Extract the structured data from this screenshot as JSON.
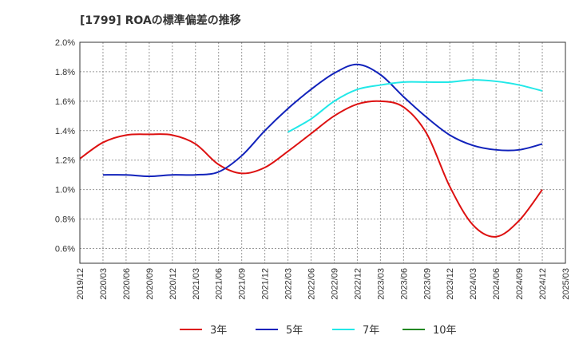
{
  "chart_data": {
    "type": "line",
    "title": "[1799]  ROAの標準偏差の推移",
    "xlabel": "",
    "ylabel": "",
    "ylim": [
      0.5,
      2.0
    ],
    "yticks": [
      "0.6%",
      "0.8%",
      "1.0%",
      "1.2%",
      "1.4%",
      "1.6%",
      "1.8%",
      "2.0%"
    ],
    "ytick_values": [
      0.6,
      0.8,
      1.0,
      1.2,
      1.4,
      1.6,
      1.8,
      2.0
    ],
    "xticks": [
      "2019/12",
      "2020/03",
      "2020/06",
      "2020/09",
      "2020/12",
      "2021/03",
      "2021/06",
      "2021/09",
      "2021/12",
      "2022/03",
      "2022/06",
      "2022/09",
      "2022/12",
      "2023/03",
      "2023/06",
      "2023/09",
      "2023/12",
      "2024/03",
      "2024/06",
      "2024/09",
      "2024/12",
      "2025/03"
    ],
    "grid": true,
    "legend_position": "bottom",
    "series": [
      {
        "name": "3年",
        "color": "#dd1111",
        "points": [
          [
            "2019/12",
            1.21
          ],
          [
            "2020/03",
            1.32
          ],
          [
            "2020/06",
            1.37
          ],
          [
            "2020/09",
            1.375
          ],
          [
            "2020/12",
            1.37
          ],
          [
            "2021/03",
            1.31
          ],
          [
            "2021/06",
            1.17
          ],
          [
            "2021/09",
            1.11
          ],
          [
            "2021/12",
            1.15
          ],
          [
            "2022/03",
            1.26
          ],
          [
            "2022/06",
            1.38
          ],
          [
            "2022/09",
            1.5
          ],
          [
            "2022/12",
            1.58
          ],
          [
            "2023/03",
            1.6
          ],
          [
            "2023/06",
            1.56
          ],
          [
            "2023/09",
            1.38
          ],
          [
            "2023/12",
            1.02
          ],
          [
            "2024/03",
            0.76
          ],
          [
            "2024/06",
            0.68
          ],
          [
            "2024/09",
            0.79
          ],
          [
            "2024/12",
            1.0
          ]
        ]
      },
      {
        "name": "5年",
        "color": "#1122bb",
        "points": [
          [
            "2020/03",
            1.1
          ],
          [
            "2020/06",
            1.1
          ],
          [
            "2020/09",
            1.09
          ],
          [
            "2020/12",
            1.1
          ],
          [
            "2021/03",
            1.1
          ],
          [
            "2021/06",
            1.12
          ],
          [
            "2021/09",
            1.23
          ],
          [
            "2021/12",
            1.4
          ],
          [
            "2022/03",
            1.55
          ],
          [
            "2022/06",
            1.68
          ],
          [
            "2022/09",
            1.79
          ],
          [
            "2022/12",
            1.85
          ],
          [
            "2023/03",
            1.78
          ],
          [
            "2023/06",
            1.63
          ],
          [
            "2023/09",
            1.49
          ],
          [
            "2023/12",
            1.37
          ],
          [
            "2024/03",
            1.3
          ],
          [
            "2024/06",
            1.27
          ],
          [
            "2024/09",
            1.27
          ],
          [
            "2024/12",
            1.31
          ]
        ]
      },
      {
        "name": "7年",
        "color": "#22e8e8",
        "points": [
          [
            "2022/03",
            1.39
          ],
          [
            "2022/06",
            1.48
          ],
          [
            "2022/09",
            1.6
          ],
          [
            "2022/12",
            1.68
          ],
          [
            "2023/03",
            1.71
          ],
          [
            "2023/06",
            1.73
          ],
          [
            "2023/09",
            1.73
          ],
          [
            "2023/12",
            1.73
          ],
          [
            "2024/03",
            1.745
          ],
          [
            "2024/06",
            1.735
          ],
          [
            "2024/09",
            1.71
          ],
          [
            "2024/12",
            1.67
          ]
        ]
      },
      {
        "name": "10年",
        "color": "#228822",
        "points": []
      }
    ]
  }
}
